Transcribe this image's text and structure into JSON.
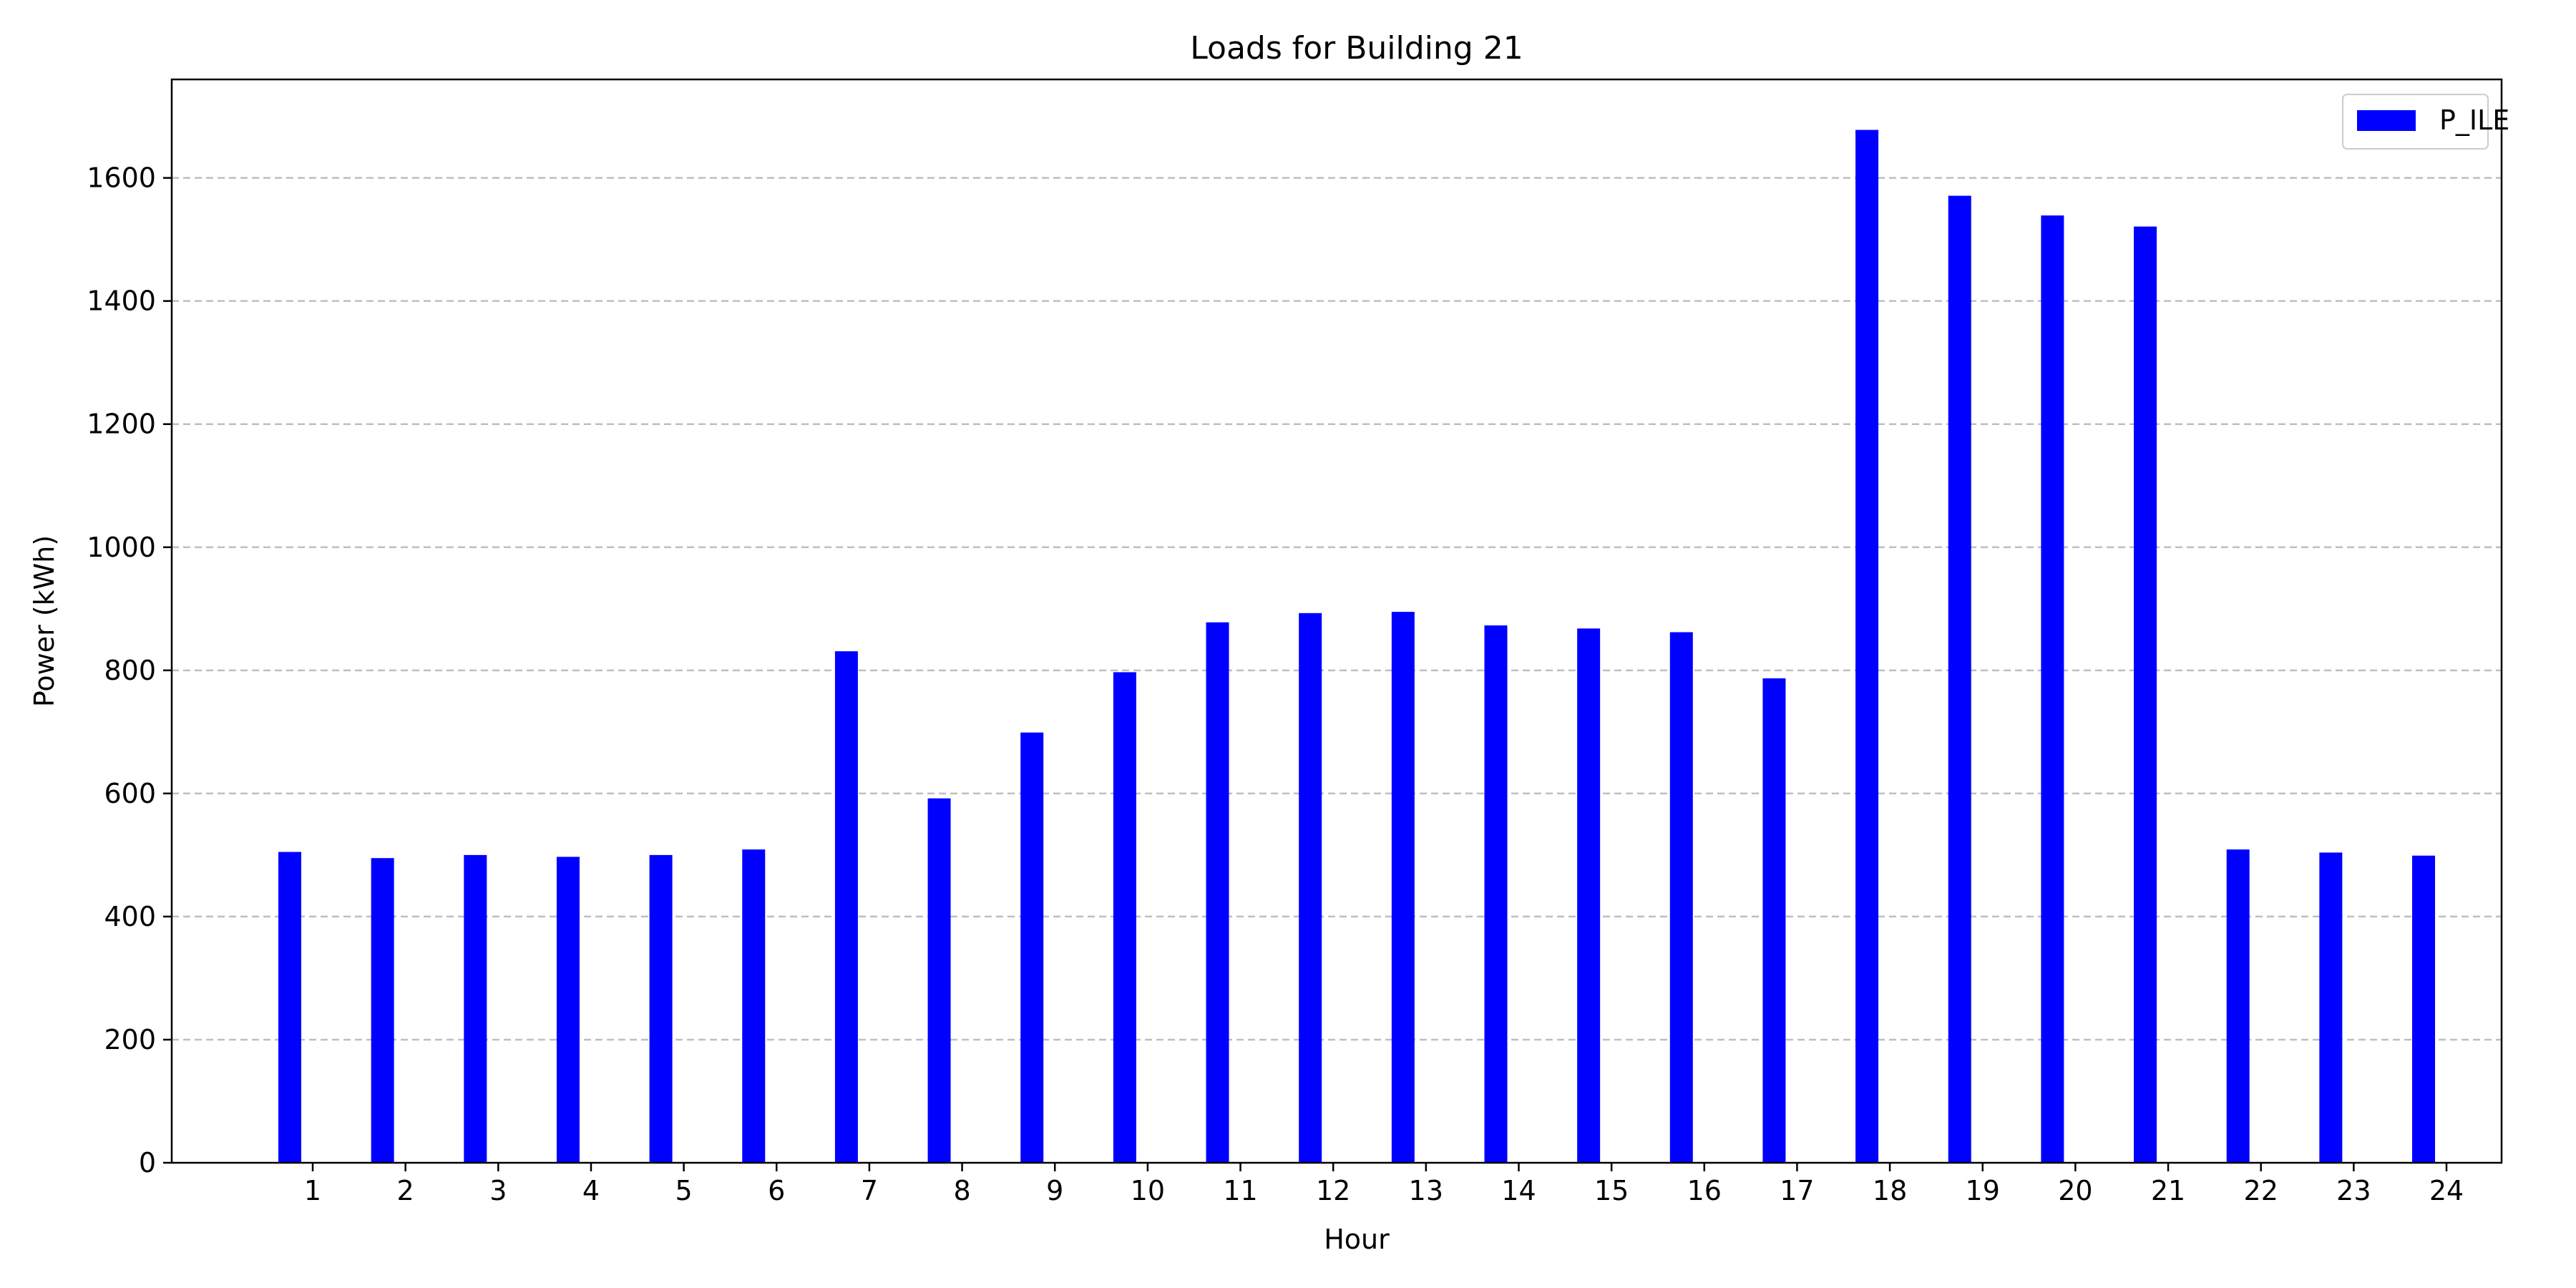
{
  "chart_data": {
    "type": "bar",
    "title": "Loads for Building 21",
    "xlabel": "Hour",
    "ylabel": "Power (kWh)",
    "categories": [
      "1",
      "2",
      "3",
      "4",
      "5",
      "6",
      "7",
      "8",
      "9",
      "10",
      "11",
      "12",
      "13",
      "14",
      "15",
      "16",
      "17",
      "18",
      "19",
      "20",
      "21",
      "22",
      "23",
      "24"
    ],
    "series": [
      {
        "name": "P_ILE",
        "color": "#0000ff",
        "values": [
          505,
          495,
          500,
          497,
          500,
          509,
          831,
          592,
          699,
          797,
          878,
          893,
          895,
          873,
          868,
          862,
          787,
          1678,
          1571,
          1539,
          1521,
          509,
          504,
          499
        ]
      }
    ],
    "ylim": [
      0,
      1760
    ],
    "yticks": [
      0,
      200,
      400,
      600,
      800,
      1000,
      1200,
      1400,
      1600
    ],
    "grid": "y-dashed",
    "legend": "top-right"
  }
}
